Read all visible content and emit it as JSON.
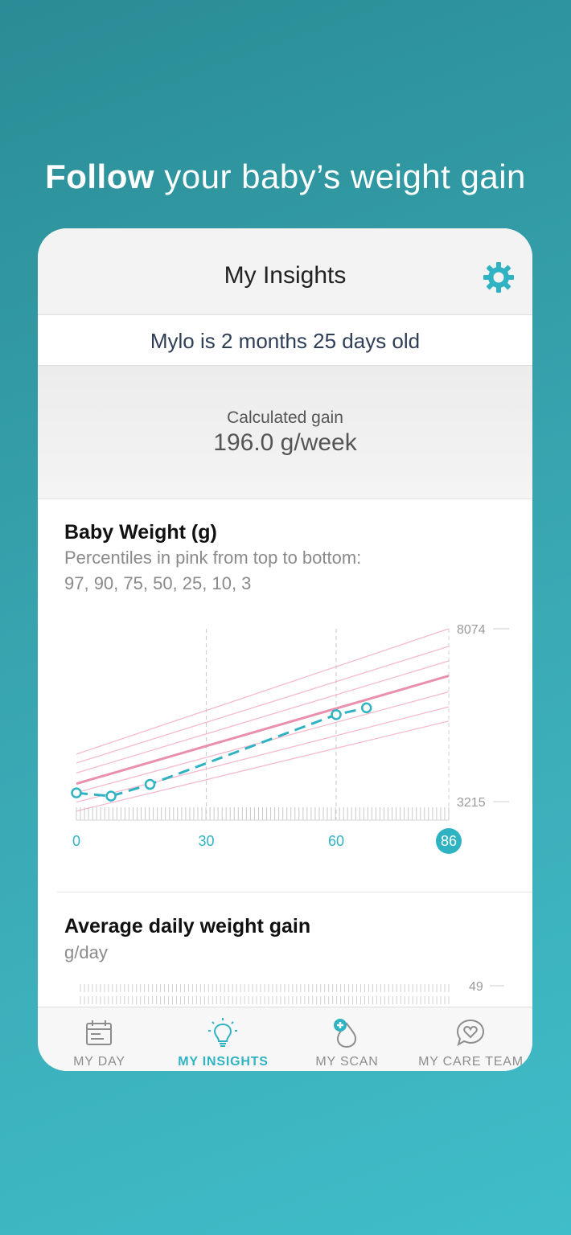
{
  "headline": {
    "bold": "Follow",
    "rest": "your baby’s weight gain"
  },
  "nav": {
    "title": "My Insights"
  },
  "baby": {
    "age_text": "Mylo  is 2 months 25 days old"
  },
  "gain": {
    "label": "Calculated gain",
    "value": "196.0 g/week"
  },
  "weight_section": {
    "title": "Baby Weight (g)",
    "subtitle_line1": "Percentiles in pink from top to bottom:",
    "subtitle_line2": "97, 90, 75, 50, 25, 10, 3"
  },
  "daily_section": {
    "title": "Average daily weight gain",
    "subtitle": "g/day",
    "axis_value": "49"
  },
  "colors": {
    "teal": "#2fb3c3",
    "pink": "#f2a4bd",
    "pink_median": "#ea8fae"
  },
  "chart_data": {
    "type": "line",
    "xlabel": "",
    "ylabel": "",
    "x_ticks": [
      "0",
      "30",
      "60",
      "86"
    ],
    "current_day": "86",
    "y_ticks": [
      "3215",
      "8074"
    ],
    "ylim": [
      3215,
      8074
    ],
    "xlim": [
      0,
      86
    ],
    "percentiles": [
      {
        "name": "97",
        "start": 4550,
        "end": 8074
      },
      {
        "name": "90",
        "start": 4300,
        "end": 7580
      },
      {
        "name": "75",
        "start": 4020,
        "end": 7170
      },
      {
        "name": "50",
        "start": 3720,
        "end": 6750
      },
      {
        "name": "25",
        "start": 3470,
        "end": 6300
      },
      {
        "name": "10",
        "start": 3200,
        "end": 5880
      },
      {
        "name": "3",
        "start": 2950,
        "end": 5480
      }
    ],
    "series": [
      {
        "x": [
          0,
          8,
          17,
          60,
          67
        ],
        "y": [
          3460,
          3370,
          3700,
          5660,
          5850
        ]
      }
    ]
  },
  "tabs": [
    {
      "label": "MY DAY",
      "icon": "calendar-icon"
    },
    {
      "label": "MY INSIGHTS",
      "icon": "lightbulb-icon",
      "active": true
    },
    {
      "label": "MY SCAN",
      "icon": "scan-drop-icon"
    },
    {
      "label": "MY CARE TEAM",
      "icon": "heart-chat-icon"
    }
  ]
}
